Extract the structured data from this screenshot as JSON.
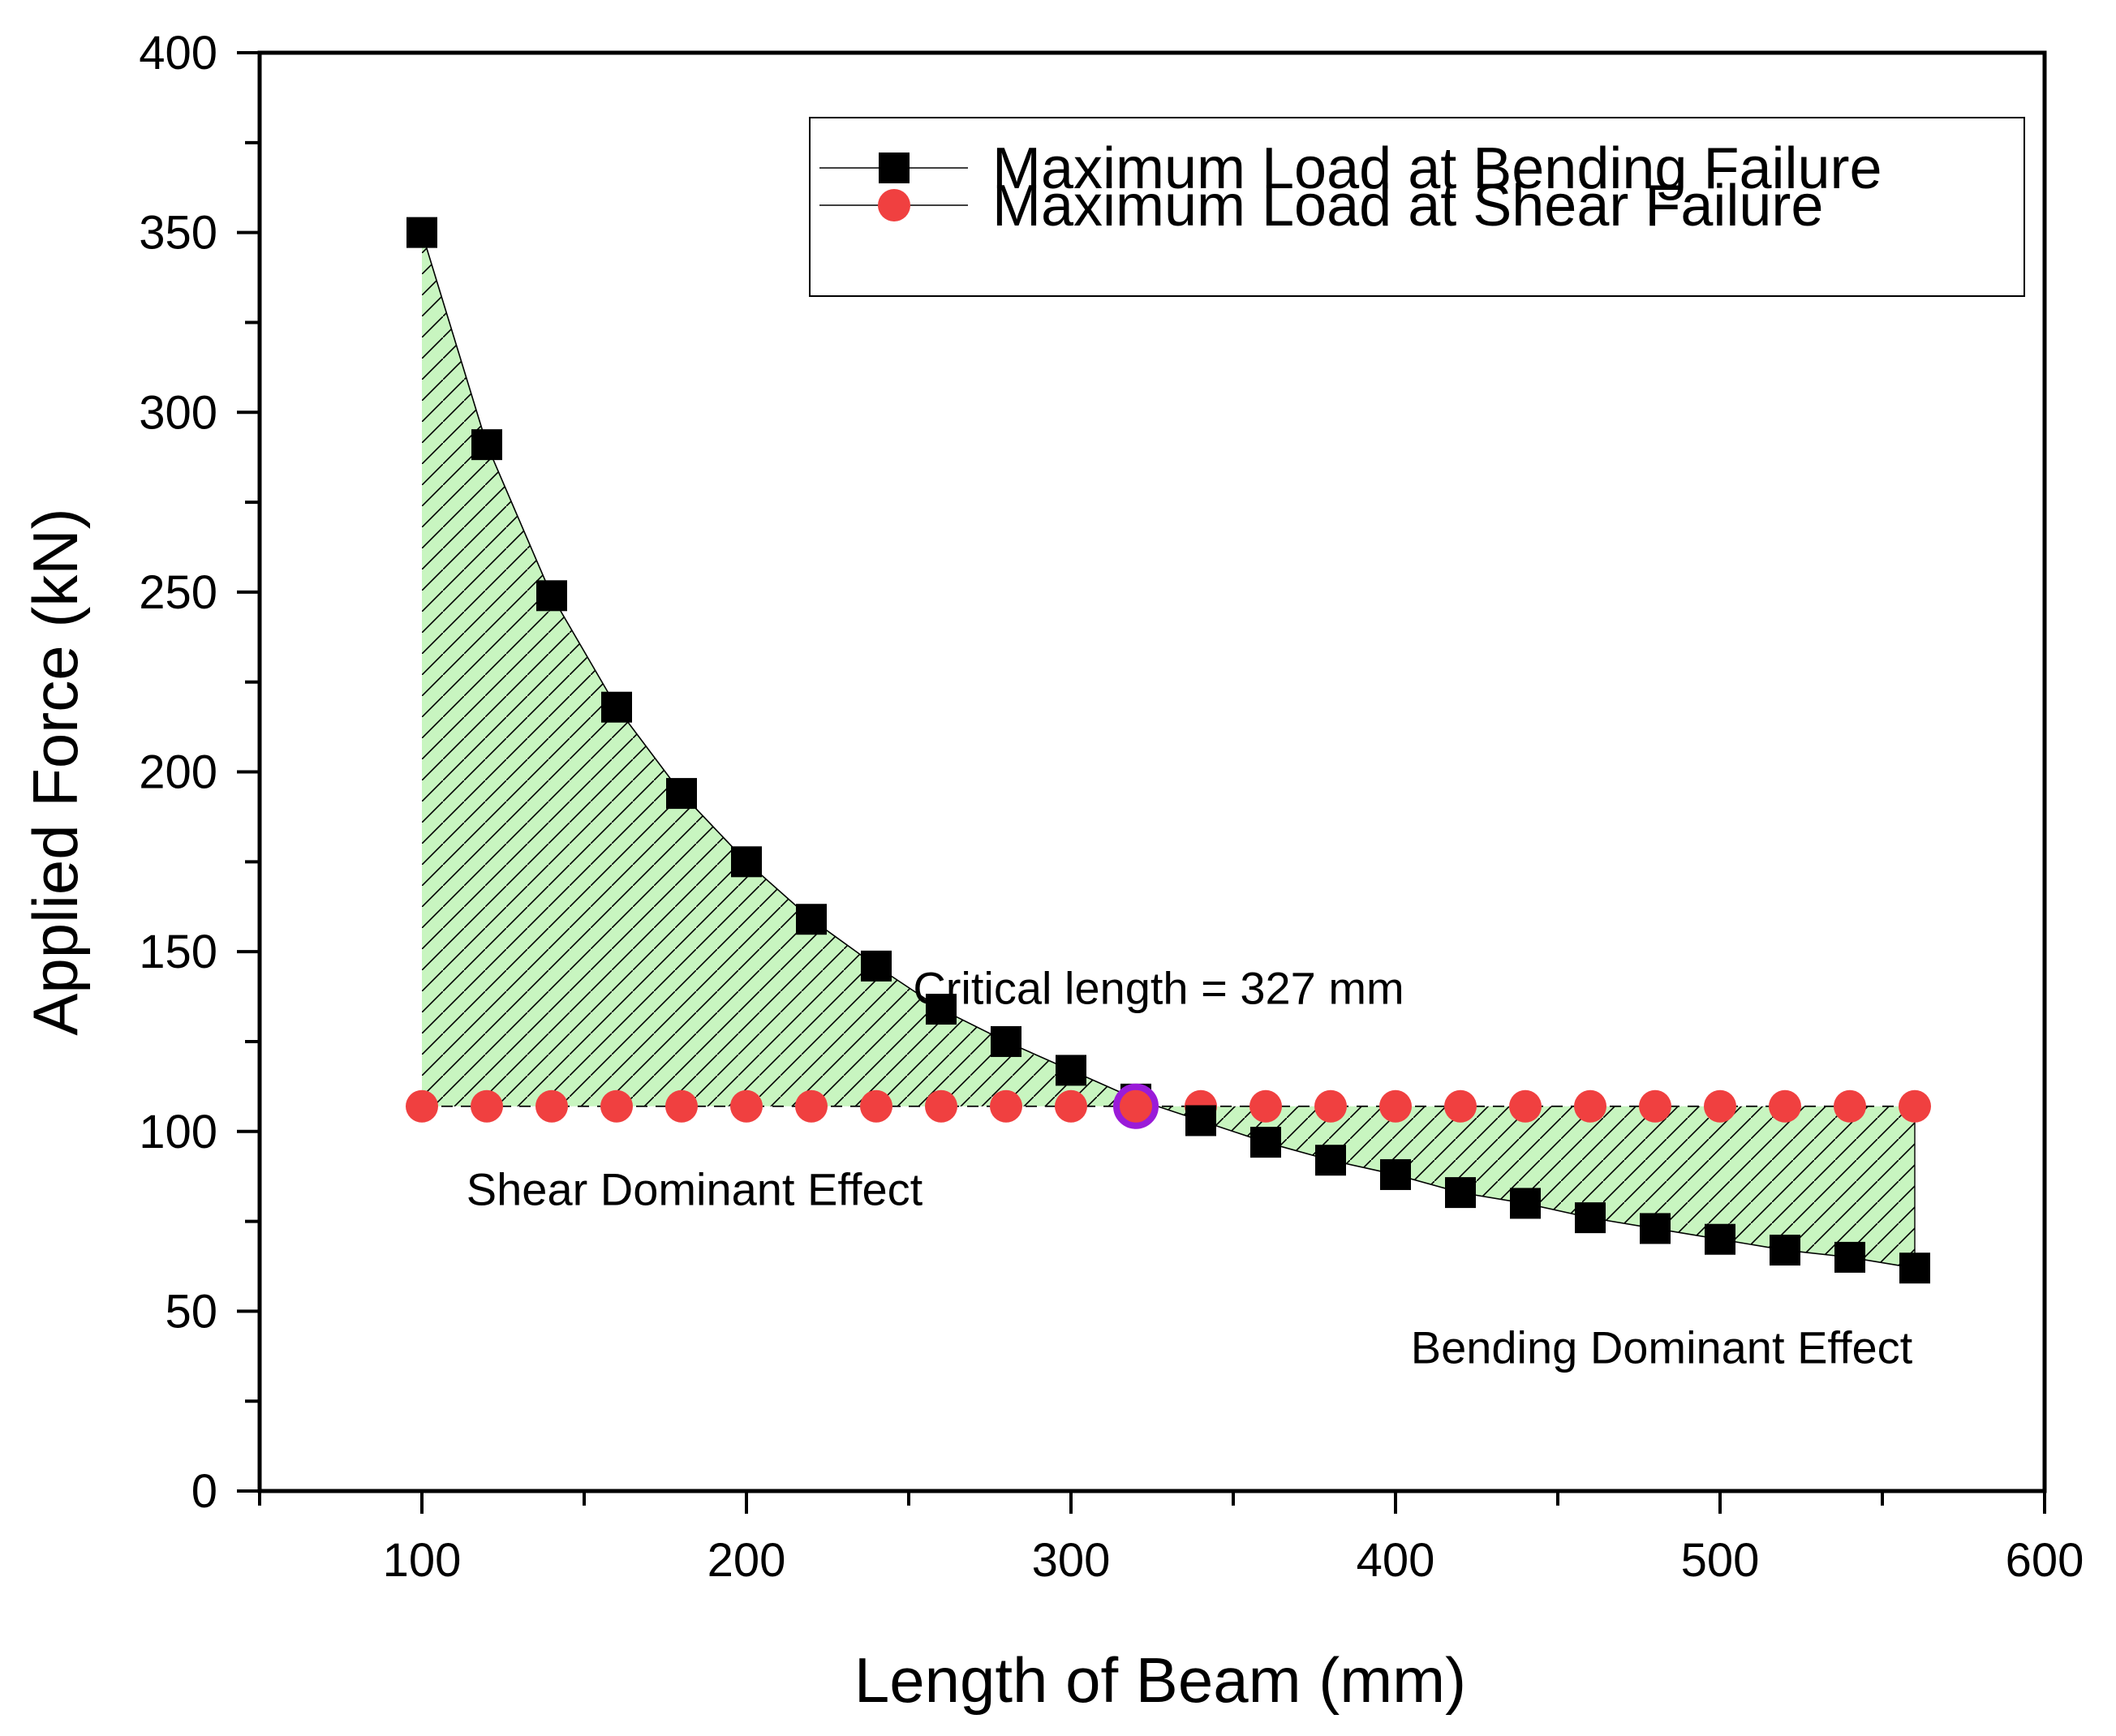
{
  "chart_data": {
    "type": "line",
    "title": "",
    "xlabel": "Length of Beam (mm)",
    "ylabel": "Applied Force (kN)",
    "xlim": [
      50,
      600
    ],
    "ylim": [
      0,
      400
    ],
    "x_ticks": [
      100,
      200,
      300,
      400,
      500,
      600
    ],
    "y_ticks": [
      0,
      50,
      100,
      150,
      200,
      250,
      300,
      350,
      400
    ],
    "grid": false,
    "legend_position": "top-right",
    "x": [
      100,
      120,
      140,
      160,
      180,
      200,
      220,
      240,
      260,
      280,
      300,
      320,
      340,
      360,
      380,
      400,
      420,
      440,
      460,
      480,
      500,
      520,
      540,
      560
    ],
    "series": [
      {
        "name": "Maximum Load at Bending Failure",
        "marker": "square",
        "color": "#000000",
        "values": [
          350,
          291,
          249,
          218,
          194,
          175,
          159,
          146,
          134,
          125,
          117,
          109,
          103,
          97,
          92,
          88,
          83,
          80,
          76,
          73,
          70,
          67,
          65,
          62
        ]
      },
      {
        "name": "Maximum Load at Shear Failure",
        "marker": "circle",
        "color": "#f04040",
        "values": [
          107,
          107,
          107,
          107,
          107,
          107,
          107,
          107,
          107,
          107,
          107,
          107,
          107,
          107,
          107,
          107,
          107,
          107,
          107,
          107,
          107,
          107,
          107,
          107
        ]
      }
    ],
    "shaded_region": {
      "between": [
        "Maximum Load at Bending Failure",
        "Maximum Load at Shear Failure"
      ],
      "fill": "#c8f5c0",
      "hatch": "diagonal"
    },
    "highlight_point": {
      "x": 320,
      "y": 107,
      "color": "#9a1bd8"
    },
    "annotations": [
      {
        "text": "Critical length = 327 mm",
        "x": 327,
        "y": 140
      },
      {
        "text": "Shear Dominant Effect",
        "x": 184,
        "y": 84
      },
      {
        "text": "Bending Dominant Effect",
        "x": 482,
        "y": 40
      }
    ]
  }
}
